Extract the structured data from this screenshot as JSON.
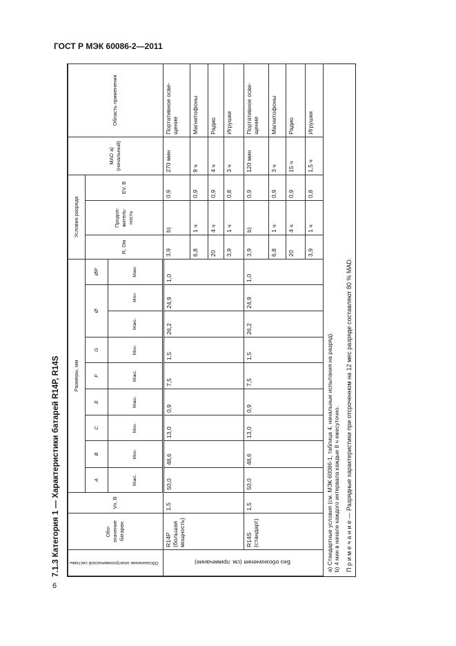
{
  "page_header": "ГОСТ Р МЭК 60086-2—2011",
  "page_number": "6",
  "section_title": "7.1.3 Категория 1 — Характеристики батарей R14P, R14S",
  "table": {
    "headers": {
      "system": "Обозначение электрохимической системы",
      "battery": "Обо-значение батареи",
      "vn": "Vn, В",
      "dimensions_group": "Размеры, мм",
      "dims": [
        {
          "letter": "A",
          "limit": "Макс."
        },
        {
          "letter": "B",
          "limit": "Мин."
        },
        {
          "letter": "C",
          "limit": "Мин."
        },
        {
          "letter": "E",
          "limit": "Макс."
        },
        {
          "letter": "F",
          "limit": "Макс."
        },
        {
          "letter": "G",
          "limit": "Мин."
        },
        {
          "letter": "Ø",
          "limit": "Макс."
        },
        {
          "letter": "",
          "limit": "Мин"
        },
        {
          "letter": "ØP",
          "limit": "Макс"
        }
      ],
      "discharge_group": "Условия разряда",
      "r": "R, Ом",
      "duration": "Продол-житель-ность",
      "ev": "EV, В",
      "mad": "MAD a)",
      "mad_sub": "(начальный)",
      "application": "Область применения"
    },
    "system_value": "Без обозначения (см. примечание)",
    "groups": [
      {
        "battery": "R14P (большая мощность)",
        "vn": "1,5",
        "dims": [
          "50,0",
          "48,6",
          "13,0",
          "0,9",
          "7,5",
          "1,5",
          "26,2",
          "24,9",
          "1,0"
        ],
        "rows": [
          {
            "r": "3,9",
            "duration": "b)",
            "ev": "0,9",
            "mad": "270 мин",
            "application": "Портативное осве-щение"
          },
          {
            "r": "6,8",
            "duration": "1 ч",
            "ev": "0,9",
            "mad": "9 ч",
            "application": "Магнитофоны"
          },
          {
            "r": "20",
            "duration": "4 ч",
            "ev": "0,9",
            "mad": "4 ч",
            "application": "Радио"
          },
          {
            "r": "3,9",
            "duration": "1 ч",
            "ev": "0,8",
            "mad": "3 ч",
            "application": "Игрушки"
          }
        ]
      },
      {
        "battery": "R14S (стандарт)",
        "vn": "1,5",
        "dims": [
          "50,0",
          "48,6",
          "13,0",
          "0,9",
          "7,5",
          "1,5",
          "26,2",
          "24,9",
          "1,0"
        ],
        "rows": [
          {
            "r": "3,9",
            "duration": "b)",
            "ev": "0,9",
            "mad": "120 мин",
            "application": "Портативное осве-щение"
          },
          {
            "r": "6,8",
            "duration": "1 ч",
            "ev": "0,9",
            "mad": "3 ч",
            "application": "Магнитофоны"
          },
          {
            "r": "20",
            "duration": "4 ч",
            "ev": "0,9",
            "mad": "15 ч",
            "application": "Радио"
          },
          {
            "r": "3,9",
            "duration": "1 ч",
            "ev": "0,8",
            "mad": "1,5 ч",
            "application": "Игрушки"
          }
        ]
      }
    ],
    "footnotes": [
      "a) Стандартные условия (см. МЭК 60086-1, таблица 4, начальные испытания на разряд).",
      "b) 4 мин в начале каждого интервала каждые 8 ч ежесуточно."
    ],
    "note": "П р и м е ч а н и е — Разрядные характеристики при отсроченном на 12 мес разряде составляют 80 % MAD."
  }
}
